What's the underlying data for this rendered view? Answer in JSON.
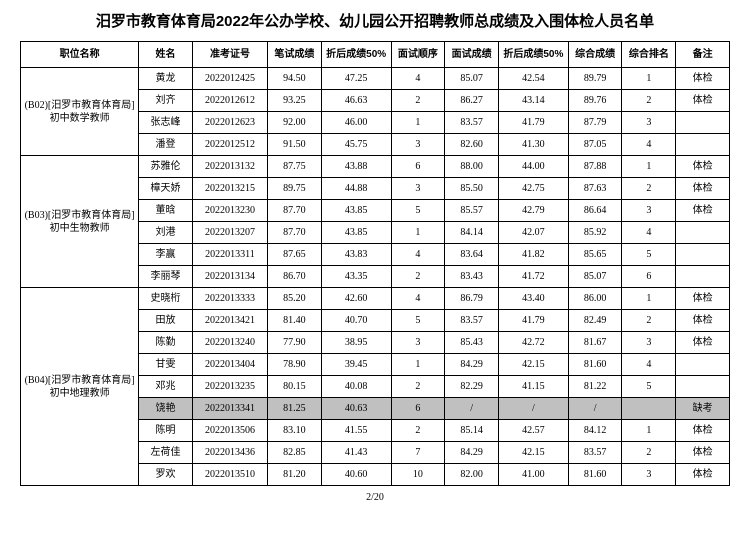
{
  "title": "汨罗市教育体育局2022年公办学校、幼儿园公开招聘教师总成绩及入围体检人员名单",
  "columns": [
    "职位名称",
    "姓名",
    "准考证号",
    "笔试成绩",
    "折后成绩50%",
    "面试顺序",
    "面试成绩",
    "折后成绩50%",
    "综合成绩",
    "综合排名",
    "备注"
  ],
  "footer": "2/20",
  "groups": [
    {
      "position": "(B02)[汨罗市教育体育局]\n初中数学教师",
      "rows": [
        {
          "name": "黄龙",
          "ticket": "2022012425",
          "written": "94.50",
          "whalf": "47.25",
          "order": "4",
          "interview": "85.07",
          "ihalf": "42.54",
          "total": "89.79",
          "rank": "1",
          "note": "体检",
          "absent": false
        },
        {
          "name": "刘齐",
          "ticket": "2022012612",
          "written": "93.25",
          "whalf": "46.63",
          "order": "2",
          "interview": "86.27",
          "ihalf": "43.14",
          "total": "89.76",
          "rank": "2",
          "note": "体检",
          "absent": false
        },
        {
          "name": "张志峰",
          "ticket": "2022012623",
          "written": "92.00",
          "whalf": "46.00",
          "order": "1",
          "interview": "83.57",
          "ihalf": "41.79",
          "total": "87.79",
          "rank": "3",
          "note": "",
          "absent": false
        },
        {
          "name": "潘登",
          "ticket": "2022012512",
          "written": "91.50",
          "whalf": "45.75",
          "order": "3",
          "interview": "82.60",
          "ihalf": "41.30",
          "total": "87.05",
          "rank": "4",
          "note": "",
          "absent": false
        }
      ]
    },
    {
      "position": "(B03)[汨罗市教育体育局]\n初中生物教师",
      "rows": [
        {
          "name": "苏雅伦",
          "ticket": "2022013132",
          "written": "87.75",
          "whalf": "43.88",
          "order": "6",
          "interview": "88.00",
          "ihalf": "44.00",
          "total": "87.88",
          "rank": "1",
          "note": "体检",
          "absent": false
        },
        {
          "name": "樟天娇",
          "ticket": "2022013215",
          "written": "89.75",
          "whalf": "44.88",
          "order": "3",
          "interview": "85.50",
          "ihalf": "42.75",
          "total": "87.63",
          "rank": "2",
          "note": "体检",
          "absent": false
        },
        {
          "name": "董晗",
          "ticket": "2022013230",
          "written": "87.70",
          "whalf": "43.85",
          "order": "5",
          "interview": "85.57",
          "ihalf": "42.79",
          "total": "86.64",
          "rank": "3",
          "note": "体检",
          "absent": false
        },
        {
          "name": "刘港",
          "ticket": "2022013207",
          "written": "87.70",
          "whalf": "43.85",
          "order": "1",
          "interview": "84.14",
          "ihalf": "42.07",
          "total": "85.92",
          "rank": "4",
          "note": "",
          "absent": false
        },
        {
          "name": "李赢",
          "ticket": "2022013311",
          "written": "87.65",
          "whalf": "43.83",
          "order": "4",
          "interview": "83.64",
          "ihalf": "41.82",
          "total": "85.65",
          "rank": "5",
          "note": "",
          "absent": false
        },
        {
          "name": "李丽琴",
          "ticket": "2022013134",
          "written": "86.70",
          "whalf": "43.35",
          "order": "2",
          "interview": "83.43",
          "ihalf": "41.72",
          "total": "85.07",
          "rank": "6",
          "note": "",
          "absent": false
        }
      ]
    },
    {
      "position": "(B04)[汨罗市教育体育局]\n初中地理教师",
      "rows": [
        {
          "name": "史晓桁",
          "ticket": "2022013333",
          "written": "85.20",
          "whalf": "42.60",
          "order": "4",
          "interview": "86.79",
          "ihalf": "43.40",
          "total": "86.00",
          "rank": "1",
          "note": "体检",
          "absent": false
        },
        {
          "name": "田放",
          "ticket": "2022013421",
          "written": "81.40",
          "whalf": "40.70",
          "order": "5",
          "interview": "83.57",
          "ihalf": "41.79",
          "total": "82.49",
          "rank": "2",
          "note": "体检",
          "absent": false
        },
        {
          "name": "陈勤",
          "ticket": "2022013240",
          "written": "77.90",
          "whalf": "38.95",
          "order": "3",
          "interview": "85.43",
          "ihalf": "42.72",
          "total": "81.67",
          "rank": "3",
          "note": "体检",
          "absent": false
        },
        {
          "name": "甘雯",
          "ticket": "2022013404",
          "written": "78.90",
          "whalf": "39.45",
          "order": "1",
          "interview": "84.29",
          "ihalf": "42.15",
          "total": "81.60",
          "rank": "4",
          "note": "",
          "absent": false
        },
        {
          "name": "邓兆",
          "ticket": "2022013235",
          "written": "80.15",
          "whalf": "40.08",
          "order": "2",
          "interview": "82.29",
          "ihalf": "41.15",
          "total": "81.22",
          "rank": "5",
          "note": "",
          "absent": false
        },
        {
          "name": "饶艳",
          "ticket": "2022013341",
          "written": "81.25",
          "whalf": "40.63",
          "order": "6",
          "interview": "/",
          "ihalf": "/",
          "total": "/",
          "rank": "",
          "note": "缺考",
          "absent": true
        },
        {
          "name": "陈明",
          "ticket": "2022013506",
          "written": "83.10",
          "whalf": "41.55",
          "order": "2",
          "interview": "85.14",
          "ihalf": "42.57",
          "total": "84.12",
          "rank": "1",
          "note": "体检",
          "absent": false
        },
        {
          "name": "左荷佳",
          "ticket": "2022013436",
          "written": "82.85",
          "whalf": "41.43",
          "order": "7",
          "interview": "84.29",
          "ihalf": "42.15",
          "total": "83.57",
          "rank": "2",
          "note": "体检",
          "absent": false
        },
        {
          "name": "罗欢",
          "ticket": "2022013510",
          "written": "81.20",
          "whalf": "40.60",
          "order": "10",
          "interview": "82.00",
          "ihalf": "41.00",
          "total": "81.60",
          "rank": "3",
          "note": "体检",
          "absent": false
        }
      ]
    }
  ]
}
